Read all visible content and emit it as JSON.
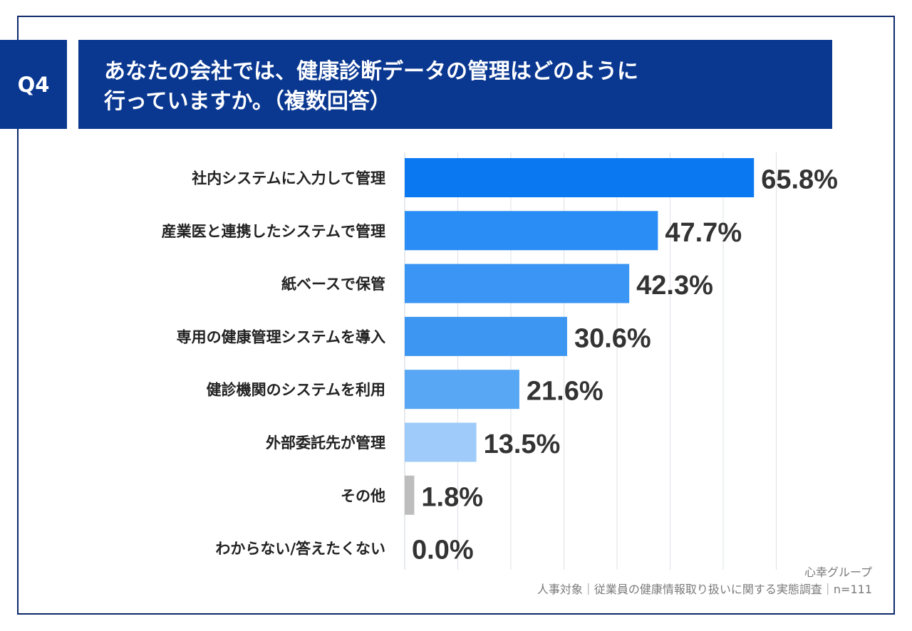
{
  "question_badge": "Q4",
  "title": {
    "line1": "あなたの会社では、健康診断データの管理はどのように",
    "line2": "行っていますか。（複数回答）"
  },
  "chart_data": {
    "type": "bar",
    "orientation": "horizontal",
    "categories": [
      "社内システムに入力して管理",
      "産業医と連携したシステムで管理",
      "紙ベースで保管",
      "専用の健康管理システムを導入",
      "健診機関のシステムを利用",
      "外部委託先が管理",
      "その他",
      "わからない/答えたくない"
    ],
    "values": [
      65.8,
      47.7,
      42.3,
      30.6,
      21.6,
      13.5,
      1.8,
      0.0
    ],
    "labels": [
      "65.8%",
      "47.7%",
      "42.3%",
      "30.6%",
      "21.6%",
      "13.5%",
      "1.8%",
      "0.0%"
    ],
    "colors": [
      "#0a78f0",
      "#2a8cf5",
      "#3a95f4",
      "#3d97f2",
      "#58a7f4",
      "#9fcbfa",
      "#bdbdbd",
      "#bdbdbd"
    ],
    "xlim": [
      0,
      70
    ],
    "grid": true,
    "unit": "%"
  },
  "source": {
    "brand": "心幸グループ",
    "survey": "人事対象｜従業員の健康情報取り扱いに関する実態調査｜n=111"
  }
}
